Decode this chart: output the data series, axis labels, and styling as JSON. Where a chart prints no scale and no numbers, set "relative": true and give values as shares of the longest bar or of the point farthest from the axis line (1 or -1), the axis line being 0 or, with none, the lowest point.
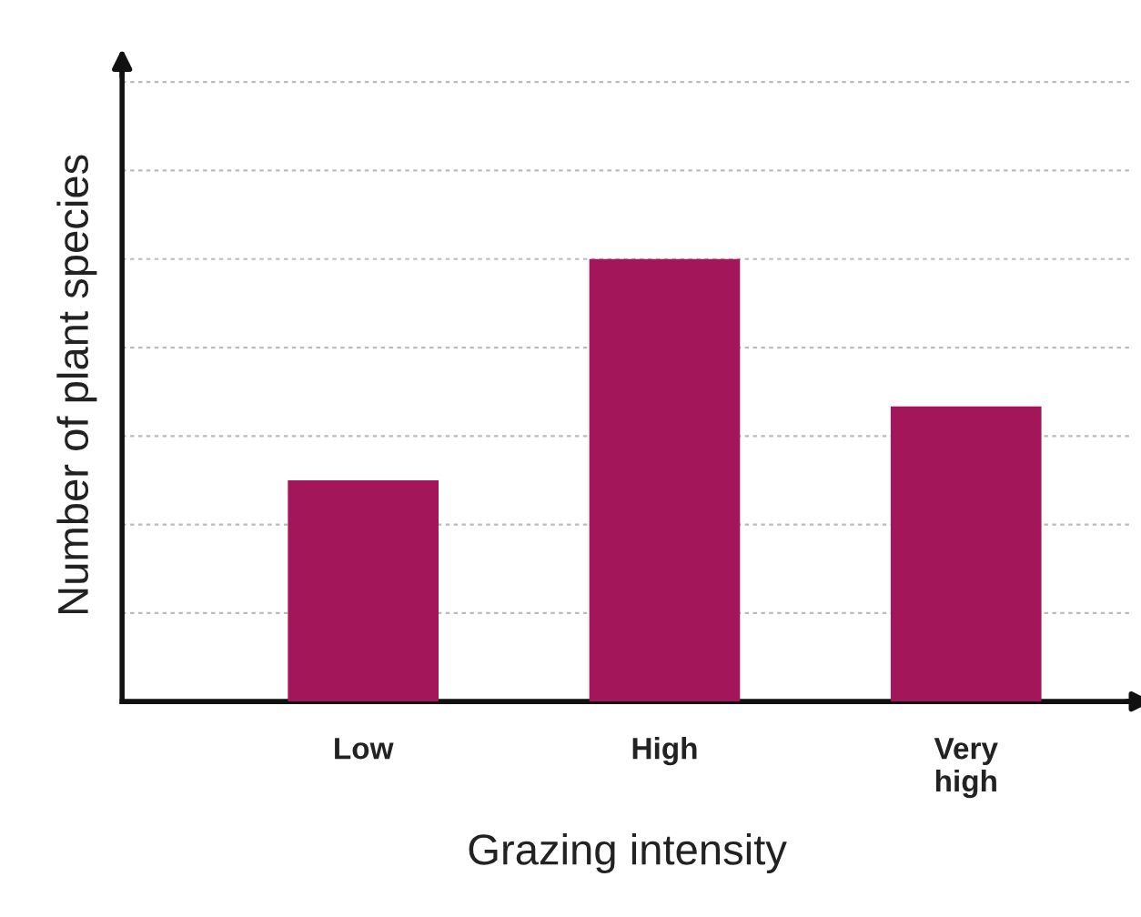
{
  "chart_data": {
    "type": "bar",
    "relative": true,
    "categories": [
      "Low",
      "High",
      "Very\nhigh"
    ],
    "values": [
      0.5,
      1,
      0.667
    ],
    "color": "#a3165a",
    "xlabel": "Grazing intensity",
    "ylabel": "Number of plant species",
    "grid": "y"
  }
}
